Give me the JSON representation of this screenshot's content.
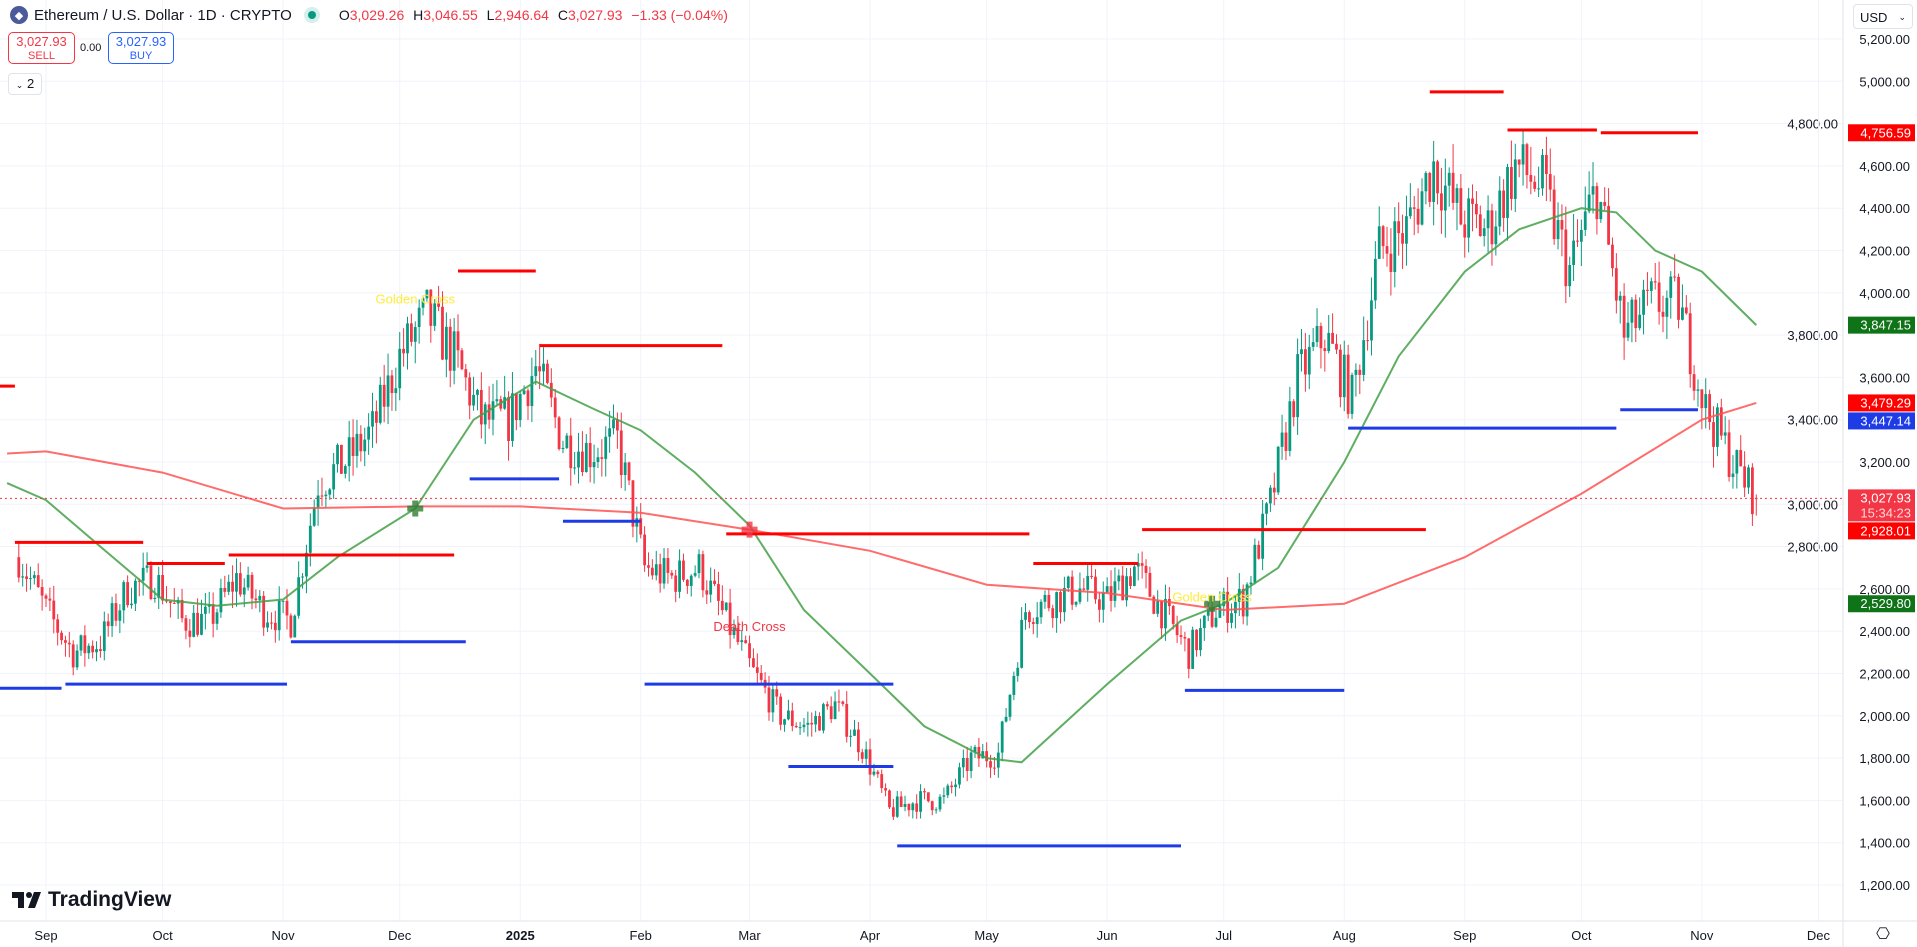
{
  "header": {
    "symbol_title": "Ethereum / U.S. Dollar · 1D · CRYPTO",
    "open_label": "O",
    "open": "3,029.26",
    "high_label": "H",
    "high": "3,046.55",
    "low_label": "L",
    "low": "2,946.64",
    "close_label": "C",
    "close": "3,027.93",
    "change": "−1.33 (−0.04%)"
  },
  "trade": {
    "sell_price": "3,027.93",
    "sell_label": "SELL",
    "spread": "0.00",
    "buy_price": "3,027.93",
    "buy_label": "BUY"
  },
  "indicators_toggle": {
    "icon": "chevron-down-icon",
    "count": "2"
  },
  "currency": "USD",
  "brand": "TradingView",
  "colors": {
    "up": "#089981",
    "down": "#f23645",
    "ma_fast": "#43a047",
    "ma_slow": "#ff5252",
    "resistance": "#ff0000",
    "support": "#1e3ce6"
  },
  "chart_data": {
    "type": "candlestick",
    "ylim": [
      1100,
      5300
    ],
    "yticks": [
      1200,
      1400,
      1600,
      1800,
      2000,
      2200,
      2400,
      2600,
      2800,
      3000,
      3200,
      3400,
      3600,
      3800,
      4000,
      4200,
      4400,
      4600,
      4800,
      5000,
      5200
    ],
    "ytick_labels": [
      "1,200.00",
      "1,400.00",
      "1,600.00",
      "1,800.00",
      "2,000.00",
      "2,200.00",
      "2,400.00",
      "2,600.00",
      "2,800.00",
      "3,000.00",
      "3,200.00",
      "3,400.00",
      "3,600.00",
      "3,800.00",
      "4,000.00",
      "4,200.00",
      "4,400.00",
      "4,600.00",
      "4,800.00",
      "5,000.00",
      "5,200.00"
    ],
    "xlim": [
      "2024-08-22",
      "2025-12-17"
    ],
    "xticks": [
      {
        "date": "2024-09-01",
        "label": "Sep"
      },
      {
        "date": "2024-10-01",
        "label": "Oct"
      },
      {
        "date": "2024-11-01",
        "label": "Nov"
      },
      {
        "date": "2024-12-01",
        "label": "Dec"
      },
      {
        "date": "2025-01-01",
        "label": "2025",
        "bold": true
      },
      {
        "date": "2025-02-01",
        "label": "Feb"
      },
      {
        "date": "2025-03-01",
        "label": "Mar"
      },
      {
        "date": "2025-04-01",
        "label": "Apr"
      },
      {
        "date": "2025-05-01",
        "label": "May"
      },
      {
        "date": "2025-06-01",
        "label": "Jun"
      },
      {
        "date": "2025-07-01",
        "label": "Jul"
      },
      {
        "date": "2025-08-01",
        "label": "Aug"
      },
      {
        "date": "2025-09-01",
        "label": "Sep"
      },
      {
        "date": "2025-10-01",
        "label": "Oct"
      },
      {
        "date": "2025-11-01",
        "label": "Nov"
      },
      {
        "date": "2025-12-01",
        "label": "Dec"
      }
    ],
    "weekly_closes": [
      [
        "2024-08-25",
        2750
      ],
      [
        "2024-09-01",
        2500
      ],
      [
        "2024-09-08",
        2300
      ],
      [
        "2024-09-15",
        2350
      ],
      [
        "2024-09-22",
        2600
      ],
      [
        "2024-09-29",
        2650
      ],
      [
        "2024-10-06",
        2450
      ],
      [
        "2024-10-13",
        2450
      ],
      [
        "2024-10-20",
        2650
      ],
      [
        "2024-10-27",
        2500
      ],
      [
        "2024-11-03",
        2450
      ],
      [
        "2024-11-10",
        3100
      ],
      [
        "2024-11-17",
        3200
      ],
      [
        "2024-11-24",
        3350
      ],
      [
        "2024-12-01",
        3700
      ],
      [
        "2024-12-08",
        3900
      ],
      [
        "2024-12-15",
        3700
      ],
      [
        "2024-12-22",
        3400
      ],
      [
        "2024-12-29",
        3400
      ],
      [
        "2025-01-05",
        3650
      ],
      [
        "2025-01-12",
        3300
      ],
      [
        "2025-01-19",
        3250
      ],
      [
        "2025-01-26",
        3300
      ],
      [
        "2025-02-02",
        2700
      ],
      [
        "2025-02-09",
        2650
      ],
      [
        "2025-02-16",
        2700
      ],
      [
        "2025-02-23",
        2450
      ],
      [
        "2025-03-02",
        2200
      ],
      [
        "2025-03-09",
        2000
      ],
      [
        "2025-03-16",
        1950
      ],
      [
        "2025-03-23",
        2050
      ],
      [
        "2025-03-30",
        1850
      ],
      [
        "2025-04-06",
        1550
      ],
      [
        "2025-04-13",
        1600
      ],
      [
        "2025-04-20",
        1600
      ],
      [
        "2025-04-27",
        1800
      ],
      [
        "2025-05-04",
        1820
      ],
      [
        "2025-05-11",
        2500
      ],
      [
        "2025-05-18",
        2550
      ],
      [
        "2025-05-25",
        2600
      ],
      [
        "2025-06-01",
        2550
      ],
      [
        "2025-06-08",
        2700
      ],
      [
        "2025-06-15",
        2500
      ],
      [
        "2025-06-22",
        2300
      ],
      [
        "2025-06-29",
        2500
      ],
      [
        "2025-07-06",
        2550
      ],
      [
        "2025-07-13",
        3000
      ],
      [
        "2025-07-20",
        3600
      ],
      [
        "2025-07-27",
        3800
      ],
      [
        "2025-08-03",
        3500
      ],
      [
        "2025-08-10",
        4200
      ],
      [
        "2025-08-17",
        4300
      ],
      [
        "2025-08-24",
        4600
      ],
      [
        "2025-08-31",
        4350
      ],
      [
        "2025-09-07",
        4300
      ],
      [
        "2025-09-14",
        4600
      ],
      [
        "2025-09-21",
        4500
      ],
      [
        "2025-09-28",
        4100
      ],
      [
        "2025-10-05",
        4500
      ],
      [
        "2025-10-12",
        3800
      ],
      [
        "2025-10-19",
        3950
      ],
      [
        "2025-10-26",
        3950
      ],
      [
        "2025-11-02",
        3450
      ],
      [
        "2025-11-09",
        3200
      ],
      [
        "2025-11-15",
        3027.93
      ]
    ],
    "last_candle": {
      "open": 3029.26,
      "high": 3046.55,
      "low": 2946.64,
      "close": 3027.93
    },
    "ma_fast": [
      [
        "2024-08-22",
        3100
      ],
      [
        "2024-09-01",
        3020
      ],
      [
        "2024-09-15",
        2800
      ],
      [
        "2024-10-01",
        2550
      ],
      [
        "2024-10-15",
        2520
      ],
      [
        "2024-11-01",
        2550
      ],
      [
        "2024-11-15",
        2750
      ],
      [
        "2024-12-05",
        2980
      ],
      [
        "2024-12-20",
        3400
      ],
      [
        "2025-01-05",
        3580
      ],
      [
        "2025-01-20",
        3450
      ],
      [
        "2025-02-01",
        3350
      ],
      [
        "2025-02-15",
        3150
      ],
      [
        "2025-03-01",
        2900
      ],
      [
        "2025-03-15",
        2500
      ],
      [
        "2025-04-01",
        2200
      ],
      [
        "2025-04-15",
        1950
      ],
      [
        "2025-05-01",
        1800
      ],
      [
        "2025-05-10",
        1780
      ],
      [
        "2025-06-01",
        2150
      ],
      [
        "2025-06-20",
        2450
      ],
      [
        "2025-07-01",
        2530
      ],
      [
        "2025-07-15",
        2700
      ],
      [
        "2025-08-01",
        3200
      ],
      [
        "2025-08-15",
        3700
      ],
      [
        "2025-09-01",
        4100
      ],
      [
        "2025-09-15",
        4300
      ],
      [
        "2025-10-01",
        4400
      ],
      [
        "2025-10-10",
        4380
      ],
      [
        "2025-10-20",
        4200
      ],
      [
        "2025-11-01",
        4100
      ],
      [
        "2025-11-15",
        3847.15
      ]
    ],
    "ma_slow": [
      [
        "2024-08-22",
        3240
      ],
      [
        "2024-09-01",
        3250
      ],
      [
        "2024-10-01",
        3150
      ],
      [
        "2024-11-01",
        2980
      ],
      [
        "2024-12-05",
        2990
      ],
      [
        "2025-01-01",
        2990
      ],
      [
        "2025-02-01",
        2960
      ],
      [
        "2025-03-01",
        2880
      ],
      [
        "2025-04-01",
        2780
      ],
      [
        "2025-05-01",
        2620
      ],
      [
        "2025-06-01",
        2580
      ],
      [
        "2025-06-20",
        2530
      ],
      [
        "2025-07-01",
        2500
      ],
      [
        "2025-08-01",
        2530
      ],
      [
        "2025-09-01",
        2750
      ],
      [
        "2025-10-01",
        3050
      ],
      [
        "2025-11-01",
        3400
      ],
      [
        "2025-11-15",
        3479.29
      ]
    ],
    "levels": [
      {
        "kind": "resistance",
        "from": "2024-08-10",
        "to": "2024-08-24",
        "price": 3559
      },
      {
        "kind": "resistance",
        "from": "2024-08-24",
        "to": "2024-09-26",
        "price": 2820
      },
      {
        "kind": "resistance",
        "from": "2024-09-27",
        "to": "2024-10-17",
        "price": 2720
      },
      {
        "kind": "resistance",
        "from": "2024-10-18",
        "to": "2024-12-15",
        "price": 2760
      },
      {
        "kind": "resistance",
        "from": "2024-12-16",
        "to": "2025-01-05",
        "price": 4103
      },
      {
        "kind": "resistance",
        "from": "2025-01-06",
        "to": "2025-02-22",
        "price": 3750
      },
      {
        "kind": "resistance",
        "from": "2025-02-23",
        "to": "2025-05-12",
        "price": 2860
      },
      {
        "kind": "resistance",
        "from": "2025-05-13",
        "to": "2025-06-09",
        "price": 2720
      },
      {
        "kind": "resistance",
        "from": "2025-06-10",
        "to": "2025-08-22",
        "price": 2880
      },
      {
        "kind": "resistance",
        "from": "2025-08-23",
        "to": "2025-09-11",
        "price": 4950
      },
      {
        "kind": "resistance",
        "from": "2025-09-12",
        "to": "2025-10-05",
        "price": 4770
      },
      {
        "kind": "resistance",
        "from": "2025-10-06",
        "to": "2025-10-31",
        "price": 4757
      },
      {
        "kind": "support",
        "from": "2024-08-10",
        "to": "2024-09-05",
        "price": 2130
      },
      {
        "kind": "support",
        "from": "2024-09-06",
        "to": "2024-11-02",
        "price": 2150
      },
      {
        "kind": "support",
        "from": "2024-11-03",
        "to": "2024-12-18",
        "price": 2350
      },
      {
        "kind": "support",
        "from": "2024-12-19",
        "to": "2025-01-11",
        "price": 3120
      },
      {
        "kind": "support",
        "from": "2025-01-12",
        "to": "2025-02-01",
        "price": 2920
      },
      {
        "kind": "support",
        "from": "2025-02-02",
        "to": "2025-04-07",
        "price": 2150
      },
      {
        "kind": "support",
        "from": "2025-03-11",
        "to": "2025-04-07",
        "price": 1760
      },
      {
        "kind": "support",
        "from": "2025-04-08",
        "to": "2025-06-20",
        "price": 1385
      },
      {
        "kind": "support",
        "from": "2025-06-21",
        "to": "2025-08-01",
        "price": 2120
      },
      {
        "kind": "support",
        "from": "2025-08-02",
        "to": "2025-10-10",
        "price": 3360
      },
      {
        "kind": "support",
        "from": "2025-10-11",
        "to": "2025-10-31",
        "price": 3447
      }
    ],
    "annotations": [
      {
        "text": "Golden Cross",
        "date": "2024-12-05",
        "price": 2980,
        "label_price": 3950,
        "color": "#ffeb3b",
        "marker": "#2e7d32"
      },
      {
        "text": "Death Cross",
        "date": "2025-03-01",
        "price": 2880,
        "label_price": 2400,
        "color": "#f23645",
        "marker": "#f23645"
      },
      {
        "text": "Golden Cross",
        "date": "2025-06-28",
        "price": 2530,
        "label_price": 2540,
        "color": "#ffeb3b",
        "marker": "#2e7d32"
      }
    ],
    "price_tags": [
      {
        "text": "4,756.59",
        "price": 4756.59,
        "color": "#ff0000"
      },
      {
        "text": "3,847.15",
        "price": 3847.15,
        "color": "#0f7318"
      },
      {
        "text": "3,479.29",
        "price": 3479.29,
        "color": "#ff0000"
      },
      {
        "text": "3,447.14",
        "price": 3447.14,
        "color": "#1e3ce6"
      },
      {
        "text": "3,027.93",
        "sub": "15:34:23",
        "price": 3027.93,
        "color": "#f23645"
      },
      {
        "text": "2,928.01",
        "price": 2928.01,
        "color": "#ff0000"
      },
      {
        "text": "2,529.80",
        "price": 2529.8,
        "color": "#0f7318"
      }
    ],
    "current_price": 3027.93
  }
}
